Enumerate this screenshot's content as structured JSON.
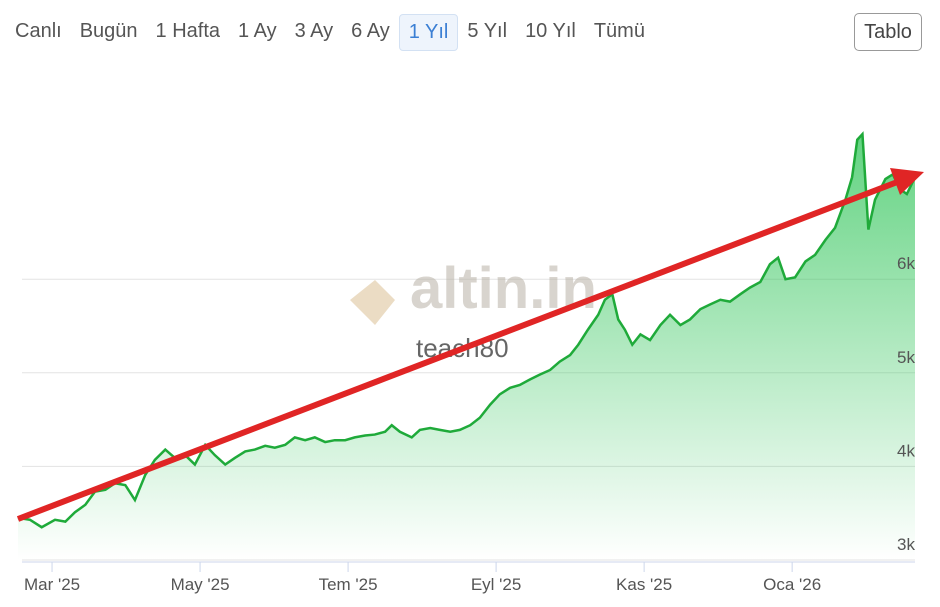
{
  "ui": {
    "tabs": [
      "Canlı",
      "Bugün",
      "1 Hafta",
      "1 Ay",
      "3 Ay",
      "6 Ay",
      "1 Yıl",
      "5 Yıl",
      "10 Yıl",
      "Tümü"
    ],
    "selected_tab": 6,
    "button": "Tablo"
  },
  "chart_data": {
    "type": "area",
    "color": "#1faa3a",
    "watermark": "altin.in",
    "annotation": "teach80",
    "xlim": [
      1.54,
      13.66
    ],
    "xticks": [
      {
        "value": 2,
        "label": "Mar '25"
      },
      {
        "value": 4,
        "label": "May '25"
      },
      {
        "value": 6,
        "label": "Tem '25"
      },
      {
        "value": 8,
        "label": "Eyl '25"
      },
      {
        "value": 10,
        "label": "Kas '25"
      },
      {
        "value": 12,
        "label": "Oca '26"
      }
    ],
    "ylim": [
      3000,
      8000
    ],
    "yticks": [
      {
        "value": 3000,
        "label": "3k"
      },
      {
        "value": 4000,
        "label": "4k"
      },
      {
        "value": 5000,
        "label": "5k"
      },
      {
        "value": 6000,
        "label": "6k"
      }
    ],
    "grid": true,
    "x": [
      1.54,
      1.7,
      1.86,
      2.04,
      2.18,
      2.31,
      2.45,
      2.58,
      2.72,
      2.85,
      2.99,
      3.12,
      3.26,
      3.39,
      3.53,
      3.66,
      3.8,
      3.93,
      4.07,
      4.2,
      4.34,
      4.47,
      4.61,
      4.74,
      4.88,
      5.01,
      5.15,
      5.28,
      5.42,
      5.55,
      5.69,
      5.82,
      5.96,
      6.09,
      6.23,
      6.36,
      6.5,
      6.59,
      6.7,
      6.86,
      6.97,
      7.11,
      7.24,
      7.38,
      7.51,
      7.65,
      7.78,
      7.92,
      8.05,
      8.19,
      8.32,
      8.46,
      8.59,
      8.73,
      8.86,
      9.0,
      9.11,
      9.24,
      9.38,
      9.47,
      9.57,
      9.65,
      9.74,
      9.84,
      9.95,
      10.08,
      10.22,
      10.35,
      10.49,
      10.62,
      10.76,
      10.89,
      11.03,
      11.16,
      11.3,
      11.43,
      11.57,
      11.7,
      11.81,
      11.91,
      12.04,
      12.18,
      12.31,
      12.45,
      12.58,
      12.72,
      12.81,
      12.88,
      12.95,
      13.03,
      13.12,
      13.26,
      13.36,
      13.46,
      13.55,
      13.66
    ],
    "values": [
      3450,
      3430,
      3350,
      3430,
      3410,
      3510,
      3590,
      3730,
      3750,
      3820,
      3800,
      3640,
      3910,
      4070,
      4180,
      4090,
      4120,
      4020,
      4230,
      4120,
      4020,
      4090,
      4160,
      4180,
      4220,
      4200,
      4230,
      4310,
      4280,
      4310,
      4260,
      4280,
      4280,
      4310,
      4330,
      4340,
      4370,
      4440,
      4370,
      4310,
      4390,
      4410,
      4390,
      4370,
      4390,
      4440,
      4520,
      4660,
      4770,
      4840,
      4870,
      4930,
      4980,
      5030,
      5120,
      5190,
      5300,
      5460,
      5620,
      5780,
      5840,
      5570,
      5460,
      5300,
      5410,
      5350,
      5510,
      5620,
      5510,
      5570,
      5680,
      5730,
      5780,
      5760,
      5840,
      5910,
      5970,
      6160,
      6230,
      6000,
      6020,
      6190,
      6260,
      6420,
      6550,
      6850,
      7090,
      7490,
      7550,
      6530,
      6850,
      7070,
      7120,
      6960,
      6910,
      7090
    ]
  }
}
